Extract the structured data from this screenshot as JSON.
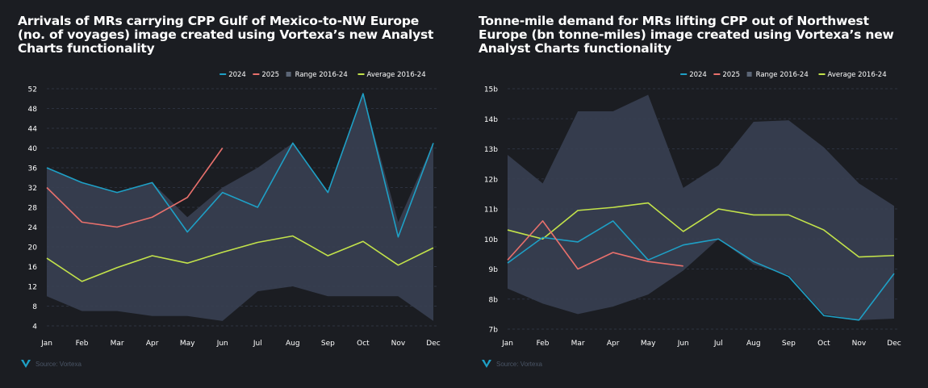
{
  "colors": {
    "background": "#1b1d22",
    "series_2024": "#1ea0c6",
    "series_2025": "#e8706c",
    "range": "#3a4255",
    "average": "#c3e34a",
    "grid": "#2c3240",
    "axis_text": "#ffffff",
    "logo": "#1ea0c6"
  },
  "chart_data": [
    {
      "type": "line",
      "title": "Arrivals of MRs carrying CPP Gulf of Mexico-to-NW Europe (no. of voyages) image created using Vortexa’s new Analyst Charts functionality",
      "categories": [
        "Jan",
        "Feb",
        "Mar",
        "Apr",
        "May",
        "Jun",
        "Jul",
        "Aug",
        "Sep",
        "Oct",
        "Nov",
        "Dec"
      ],
      "y_ticks": [
        "4",
        "8",
        "12",
        "16",
        "20",
        "24",
        "28",
        "32",
        "36",
        "40",
        "44",
        "48",
        "52"
      ],
      "ylim": [
        4,
        52
      ],
      "grid": true,
      "legend_position": "top-right",
      "legend": [
        "2024",
        "2025",
        "Range 2016-24",
        "Average 2016-24"
      ],
      "range": {
        "name": "Range 2016-24",
        "low": [
          10,
          7,
          7,
          6,
          6,
          5,
          11,
          12,
          10,
          10,
          10,
          5
        ],
        "high": [
          36,
          33,
          31,
          33,
          26,
          32,
          36,
          41,
          31,
          51,
          25,
          41
        ]
      },
      "series": [
        {
          "name": "2024",
          "values": [
            36,
            33,
            31,
            33,
            23,
            31,
            28,
            41,
            31,
            51,
            22,
            41
          ]
        },
        {
          "name": "2025",
          "values": [
            32,
            25,
            24,
            26,
            30,
            40,
            null,
            null,
            null,
            null,
            null,
            null
          ]
        },
        {
          "name": "Average 2016-24",
          "values": [
            17.7,
            13,
            15.8,
            18.2,
            16.7,
            18.9,
            20.9,
            22.2,
            18.2,
            21.1,
            16.3,
            19.8
          ]
        }
      ],
      "source": "Source: Vortexa"
    },
    {
      "type": "line",
      "title": "Tonne-mile demand for MRs lifting CPP out of Northwest Europe (bn tonne-miles) image created using Vortexa’s new Analyst Charts functionality",
      "categories": [
        "Jan",
        "Feb",
        "Mar",
        "Apr",
        "May",
        "Jun",
        "Jul",
        "Aug",
        "Sep",
        "Oct",
        "Nov",
        "Dec"
      ],
      "y_ticks": [
        "7b",
        "8b",
        "9b",
        "10b",
        "11b",
        "12b",
        "13b",
        "14b",
        "15b"
      ],
      "ylim": [
        7,
        15
      ],
      "grid": true,
      "legend_position": "top-right",
      "legend": [
        "2024",
        "2025",
        "Range 2016-24",
        "Average 2016-24"
      ],
      "range": {
        "name": "Range 2016-24",
        "low": [
          8.35,
          7.85,
          7.5,
          7.75,
          8.15,
          8.95,
          10.0,
          9.15,
          8.8,
          7.5,
          7.3,
          7.35
        ],
        "high": [
          12.8,
          11.85,
          14.25,
          14.25,
          14.8,
          11.7,
          12.45,
          13.9,
          13.95,
          13.05,
          11.85,
          11.1
        ]
      },
      "series": [
        {
          "name": "2024",
          "values": [
            9.2,
            10.05,
            9.9,
            10.6,
            9.3,
            9.8,
            10.0,
            9.25,
            8.75,
            7.45,
            7.3,
            8.85
          ]
        },
        {
          "name": "2025",
          "values": [
            9.3,
            10.6,
            9.0,
            9.55,
            9.25,
            9.1,
            null,
            null,
            null,
            null,
            null,
            null
          ]
        },
        {
          "name": "Average 2016-24",
          "values": [
            10.3,
            10.0,
            10.95,
            11.05,
            11.2,
            10.25,
            11.0,
            10.8,
            10.8,
            10.3,
            9.4,
            9.45
          ]
        }
      ],
      "source": "Source: Vortexa"
    }
  ]
}
